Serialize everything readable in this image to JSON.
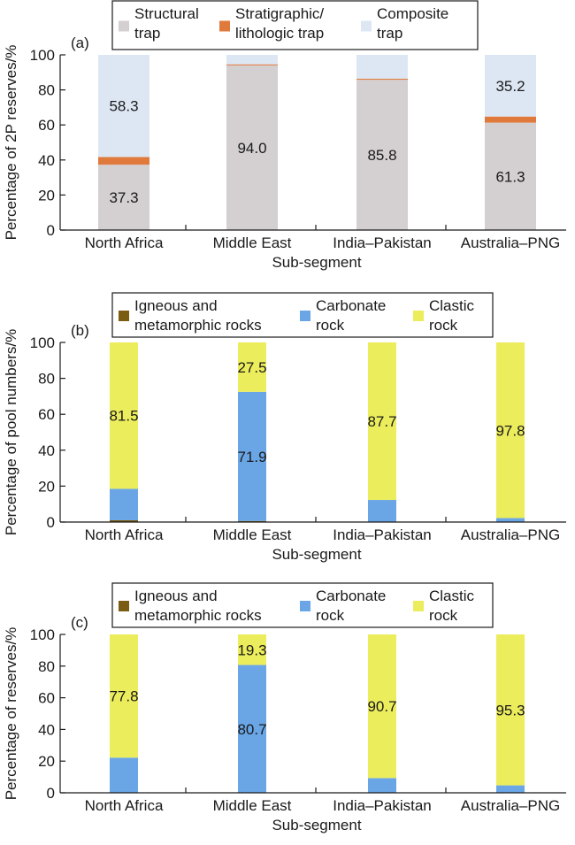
{
  "chart_data": [
    {
      "type": "bar",
      "stacked": true,
      "panel_label": "(a)",
      "categories": [
        "North Africa",
        "Middle East",
        "India–Pakistan",
        "Australia–PNG"
      ],
      "series": [
        {
          "name_lines": [
            "Structural",
            "trap"
          ],
          "color": "#d4cfd1",
          "values": [
            37.3,
            94.0,
            85.8,
            61.3
          ]
        },
        {
          "name_lines": [
            "Stratigraphic/",
            "lithologic trap"
          ],
          "color": "#e07a3c",
          "values": [
            4.4,
            0.6,
            0.6,
            3.5
          ]
        },
        {
          "name_lines": [
            "Composite",
            "trap"
          ],
          "color": "#dde7f4",
          "values": [
            58.3,
            5.4,
            13.6,
            35.2
          ]
        }
      ],
      "data_labels": [
        {
          "category": 0,
          "series": 0,
          "text": "37.3"
        },
        {
          "category": 0,
          "series": 2,
          "text": "58.3"
        },
        {
          "category": 1,
          "series": 0,
          "text": "94.0"
        },
        {
          "category": 2,
          "series": 0,
          "text": "85.8"
        },
        {
          "category": 3,
          "series": 0,
          "text": "61.3"
        },
        {
          "category": 3,
          "series": 2,
          "text": "35.2"
        }
      ],
      "ylabel": "Percentage of 2P reserves/%",
      "xlabel": "Sub-segment",
      "ylim": [
        0,
        100
      ],
      "yticks": [
        "0",
        "20",
        "40",
        "60",
        "80",
        "100"
      ],
      "legend_position": "top"
    },
    {
      "type": "bar",
      "stacked": true,
      "panel_label": "(b)",
      "categories": [
        "North Africa",
        "Middle East",
        "India–Pakistan",
        "Australia–PNG"
      ],
      "series": [
        {
          "name_lines": [
            "Igneous and",
            "metamorphic rocks"
          ],
          "color": "#7a5c12",
          "values": [
            1.0,
            0.6,
            0.0,
            0.0
          ]
        },
        {
          "name_lines": [
            "Carbonate",
            "rock"
          ],
          "color": "#6aa6e6",
          "values": [
            17.5,
            71.9,
            12.3,
            2.2
          ]
        },
        {
          "name_lines": [
            "Clastic",
            "rock"
          ],
          "color": "#eced5c",
          "values": [
            81.5,
            27.5,
            87.7,
            97.8
          ]
        }
      ],
      "data_labels": [
        {
          "category": 0,
          "series": 2,
          "text": "81.5"
        },
        {
          "category": 1,
          "series": 1,
          "text": "71.9"
        },
        {
          "category": 1,
          "series": 2,
          "text": "27.5"
        },
        {
          "category": 2,
          "series": 2,
          "text": "87.7"
        },
        {
          "category": 3,
          "series": 2,
          "text": "97.8"
        }
      ],
      "ylabel": "Percentage of pool numbers/%",
      "xlabel": "Sub-segment",
      "ylim": [
        0,
        100
      ],
      "yticks": [
        "0",
        "20",
        "40",
        "60",
        "80",
        "100"
      ],
      "legend_position": "top"
    },
    {
      "type": "bar",
      "stacked": true,
      "panel_label": "(c)",
      "categories": [
        "North Africa",
        "Middle East",
        "India–Pakistan",
        "Australia–PNG"
      ],
      "series": [
        {
          "name_lines": [
            "Igneous and",
            "metamorphic rocks"
          ],
          "color": "#7a5c12",
          "values": [
            0.0,
            0.0,
            0.0,
            0.0
          ]
        },
        {
          "name_lines": [
            "Carbonate",
            "rock"
          ],
          "color": "#6aa6e6",
          "values": [
            22.2,
            80.7,
            9.3,
            4.7
          ]
        },
        {
          "name_lines": [
            "Clastic",
            "rock"
          ],
          "color": "#eced5c",
          "values": [
            77.8,
            19.3,
            90.7,
            95.3
          ]
        }
      ],
      "data_labels": [
        {
          "category": 0,
          "series": 2,
          "text": "77.8"
        },
        {
          "category": 1,
          "series": 1,
          "text": "80.7"
        },
        {
          "category": 1,
          "series": 2,
          "text": "19.3"
        },
        {
          "category": 2,
          "series": 2,
          "text": "90.7"
        },
        {
          "category": 3,
          "series": 2,
          "text": "95.3"
        }
      ],
      "ylabel": "Percentage of reserves/%",
      "xlabel": "Sub-segment",
      "ylim": [
        0,
        100
      ],
      "yticks": [
        "0",
        "20",
        "40",
        "60",
        "80",
        "100"
      ],
      "legend_position": "top"
    }
  ]
}
